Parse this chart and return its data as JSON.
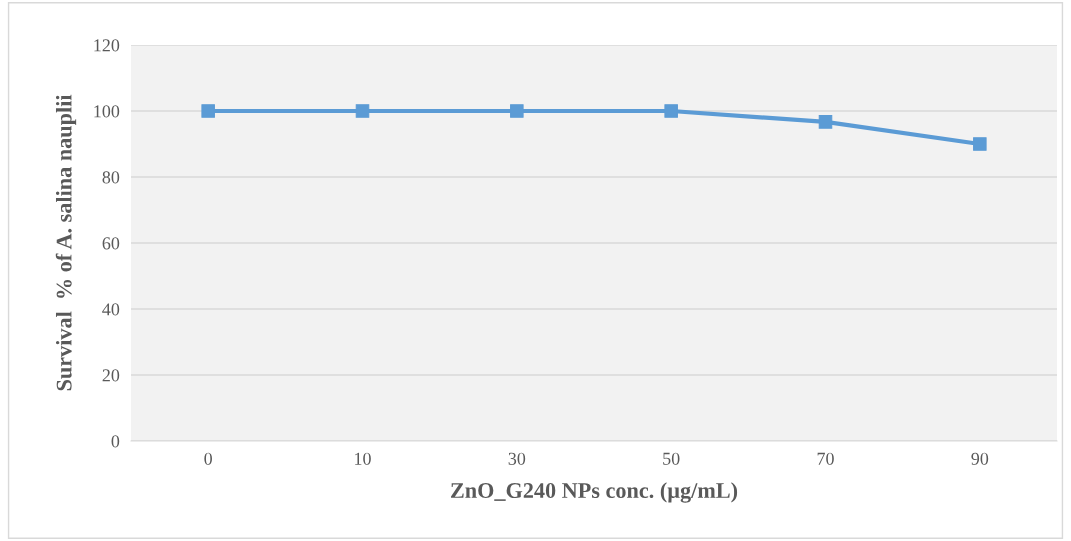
{
  "chart_data": {
    "type": "line",
    "xlabel": "ZnO_G240 NPs conc. (µg/mL)",
    "ylabel": "Survival  % of A. salina nauplii",
    "categories": [
      "0",
      "10",
      "30",
      "50",
      "70",
      "90"
    ],
    "series": [
      {
        "color": "#5b9bd5",
        "values": [
          100,
          100,
          100,
          100,
          96.7,
          90
        ]
      }
    ],
    "ylim": [
      0,
      120
    ],
    "yticks": [
      0,
      20,
      40,
      60,
      80,
      100,
      120
    ],
    "grid": "y",
    "marker": "square",
    "line_style": "solid",
    "legend": false
  }
}
